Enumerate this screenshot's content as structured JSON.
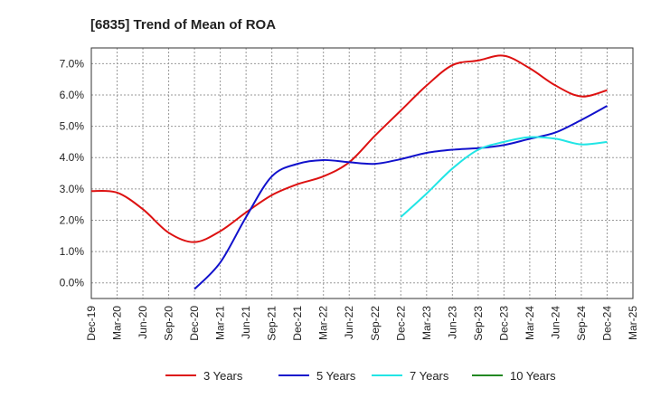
{
  "chart_data": {
    "type": "line",
    "title": "[6835]  Trend of Mean of ROA",
    "xlabel": "",
    "ylabel": "",
    "ylim": [
      -0.5,
      7.5
    ],
    "grid": true,
    "legend_position": "bottom",
    "categories": [
      "Dec-19",
      "Mar-20",
      "Jun-20",
      "Sep-20",
      "Dec-20",
      "Mar-21",
      "Jun-21",
      "Sep-21",
      "Dec-21",
      "Mar-22",
      "Jun-22",
      "Sep-22",
      "Dec-22",
      "Mar-23",
      "Jun-23",
      "Sep-23",
      "Dec-23",
      "Mar-24",
      "Jun-24",
      "Sep-24",
      "Dec-24",
      "Mar-25"
    ],
    "y_ticks": [
      0.0,
      1.0,
      2.0,
      3.0,
      4.0,
      5.0,
      6.0,
      7.0
    ],
    "y_tick_labels": [
      "0.0%",
      "1.0%",
      "2.0%",
      "3.0%",
      "4.0%",
      "5.0%",
      "6.0%",
      "7.0%"
    ],
    "series": [
      {
        "name": "3 Years",
        "color": "#dd1111",
        "values": [
          2.93,
          2.88,
          2.35,
          1.6,
          1.3,
          1.65,
          2.25,
          2.8,
          3.15,
          3.4,
          3.85,
          4.7,
          5.5,
          6.3,
          6.95,
          7.1,
          7.25,
          6.85,
          6.3,
          5.95,
          6.15,
          null
        ]
      },
      {
        "name": "5 Years",
        "color": "#1111cc",
        "values": [
          null,
          null,
          null,
          null,
          -0.2,
          0.65,
          2.1,
          3.4,
          3.8,
          3.92,
          3.85,
          3.8,
          3.95,
          4.15,
          4.25,
          4.3,
          4.4,
          4.6,
          4.8,
          5.2,
          5.65,
          null
        ]
      },
      {
        "name": "7 Years",
        "color": "#22e5e5",
        "values": [
          null,
          null,
          null,
          null,
          null,
          null,
          null,
          null,
          null,
          null,
          null,
          null,
          2.1,
          2.85,
          3.65,
          4.25,
          4.5,
          4.65,
          4.6,
          4.42,
          4.5,
          null
        ]
      },
      {
        "name": "10 Years",
        "color": "#228822",
        "values": [
          null,
          null,
          null,
          null,
          null,
          null,
          null,
          null,
          null,
          null,
          null,
          null,
          null,
          null,
          null,
          null,
          null,
          null,
          null,
          null,
          null,
          null
        ]
      }
    ]
  }
}
